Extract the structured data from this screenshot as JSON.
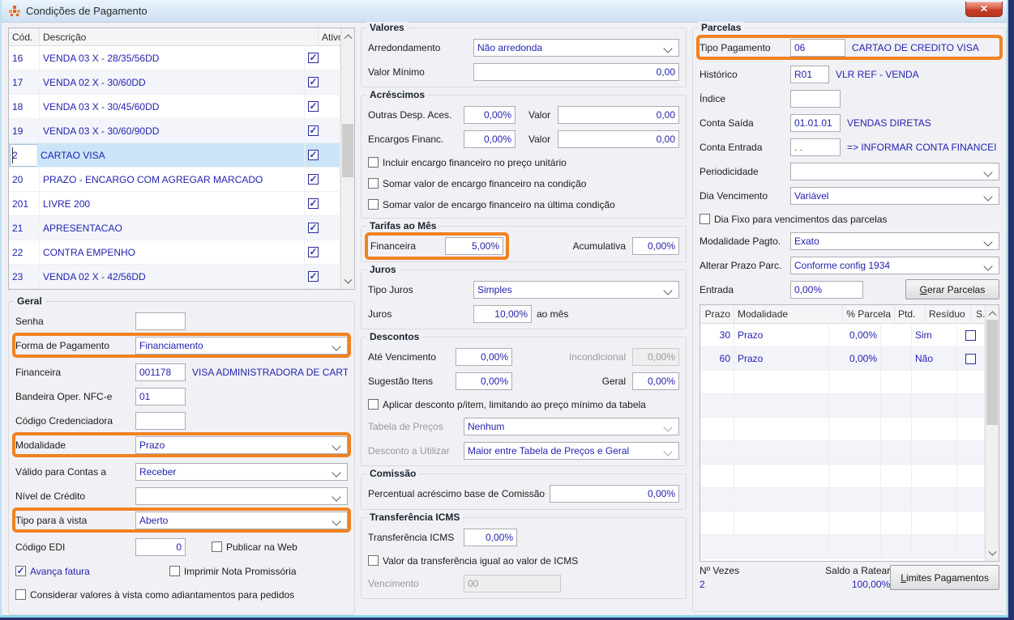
{
  "window": {
    "title": "Condições de Pagamento",
    "close_glyph": "✕"
  },
  "conditions_table": {
    "columns": {
      "code": "Cód.",
      "desc": "Descrição",
      "active": "Ativo"
    },
    "rows": [
      {
        "code": "16",
        "desc": "VENDA 03 X - 28/35/56DD",
        "active": true,
        "selected": false,
        "alt": false
      },
      {
        "code": "17",
        "desc": "VENDA 02 X - 30/60DD",
        "active": true,
        "selected": false,
        "alt": true
      },
      {
        "code": "18",
        "desc": "VENDA 03 X - 30/45/60DD",
        "active": true,
        "selected": false,
        "alt": false
      },
      {
        "code": "19",
        "desc": "VENDA 03 X - 30/60/90DD",
        "active": true,
        "selected": false,
        "alt": true
      },
      {
        "code": "2",
        "desc": "CARTAO VISA",
        "active": true,
        "selected": true,
        "alt": false
      },
      {
        "code": "20",
        "desc": "PRAZO - ENCARGO COM AGREGAR MARCADO",
        "active": true,
        "selected": false,
        "alt": false
      },
      {
        "code": "201",
        "desc": "LIVRE 200",
        "active": true,
        "selected": false,
        "alt": false
      },
      {
        "code": "21",
        "desc": "APRESENTACAO",
        "active": true,
        "selected": false,
        "alt": true
      },
      {
        "code": "22",
        "desc": "CONTRA EMPENHO",
        "active": true,
        "selected": false,
        "alt": false
      },
      {
        "code": "23",
        "desc": "VENDA 02 X - 42/56DD",
        "active": true,
        "selected": false,
        "alt": true
      }
    ]
  },
  "geral": {
    "title": "Geral",
    "senha_label": "Senha",
    "forma_pagamento_label": "Forma de Pagamento",
    "forma_pagamento_value": "Financiamento",
    "financeira_label": "Financeira",
    "financeira_code": "001178",
    "financeira_desc": "VISA ADMINISTRADORA DE CARTC",
    "bandeira_label": "Bandeira Oper. NFC-e",
    "bandeira_value": "01",
    "credenciadora_label": "Código Credenciadora",
    "modalidade_label": "Modalidade",
    "modalidade_value": "Prazo",
    "valido_label": "Válido para Contas a",
    "valido_value": "Receber",
    "nivel_label": "Nível de Crédito",
    "nivel_value": "",
    "tipo_vista_label": "Tipo para à vista",
    "tipo_vista_value": "Aberto",
    "codigo_edi_label": "Código EDI",
    "codigo_edi_value": "0",
    "publicar_web_label": "Publicar na Web",
    "avanca_fatura_label": "Avança fatura",
    "imprimir_label": "Imprimir Nota Promissória",
    "considerar_label": "Considerar valores à vista como adiantamentos para pedidos"
  },
  "valores": {
    "title": "Valores",
    "arredondamento_label": "Arredondamento",
    "arredondamento_value": "Não arredonda",
    "valor_minimo_label": "Valor Mínimo",
    "valor_minimo_value": "0,00"
  },
  "acrescimos": {
    "title": "Acréscimos",
    "outras_label": "Outras Desp. Aces.",
    "outras_pct": "0,00%",
    "valor_label_1": "Valor",
    "outras_valor": "0,00",
    "encargos_label": "Encargos Financ.",
    "encargos_pct": "0,00%",
    "valor_label_2": "Valor",
    "encargos_valor": "0,00",
    "chk_incluir": "Incluir encargo financeiro no preço unitário",
    "chk_somar_condicao": "Somar valor de encargo financeiro na condição",
    "chk_somar_ultima": "Somar valor de encargo financeiro na última condição"
  },
  "tarifas": {
    "title": "Tarifas ao Mês",
    "financeira_label": "Financeira",
    "financeira_pct": "5,00%",
    "acumulativa_label": "Acumulativa",
    "acumulativa_pct": "0,00%"
  },
  "juros": {
    "title": "Juros",
    "tipo_label": "Tipo Juros",
    "tipo_value": "Simples",
    "juros_label": "Juros",
    "juros_pct": "10,00%",
    "sufixo": "ao mês"
  },
  "descontos": {
    "title": "Descontos",
    "ate_label": "Até Vencimento",
    "ate_pct": "0,00%",
    "incondicional_label": "Incondicional",
    "incondicional_pct": "0,00%",
    "sugestao_label": "Sugestão Itens",
    "sugestao_pct": "0,00%",
    "geral_label": "Geral",
    "geral_pct": "0,00%",
    "chk_aplicar": "Aplicar desconto p/item, limitando ao preço mínimo da tabela",
    "tabela_label": "Tabela de Preços",
    "tabela_value": "Nenhum",
    "desconto_label": "Desconto a Utilizar",
    "desconto_value": "Maior entre Tabela de Preços e Geral"
  },
  "comissao": {
    "title": "Comissão",
    "label": "Percentual acréscimo base de Comissão",
    "pct": "0,00%"
  },
  "transferencia": {
    "title": "Transferência ICMS",
    "label": "Transferência ICMS",
    "pct": "0,00%",
    "chk_valor": "Valor da transferência igual ao valor de ICMS",
    "vencimento_label": "Vencimento",
    "vencimento_value": "00"
  },
  "parcelas": {
    "title": "Parcelas",
    "tipo_pagamento_label": "Tipo Pagamento",
    "tipo_pagamento_code": "06",
    "tipo_pagamento_desc": "CARTAO DE CREDITO VISA",
    "historico_label": "Histórico",
    "historico_code": "R01",
    "historico_desc": "VLR REF - VENDA",
    "indice_label": "Índice",
    "indice_value": "",
    "conta_saida_label": "Conta Saída",
    "conta_saida_code": "01.01.01",
    "conta_saida_desc": "VENDAS DIRETAS",
    "conta_entrada_label": "Conta Entrada",
    "conta_entrada_code": ". .",
    "conta_entrada_desc": "=> INFORMAR CONTA FINANCEI",
    "periodicidade_label": "Periodicidade",
    "periodicidade_value": "",
    "dia_venc_label": "Dia Vencimento",
    "dia_venc_value": "Variável",
    "chk_dia_fixo": "Dia Fixo para vencimentos das parcelas",
    "modalidade_label": "Modalidade Pagto.",
    "modalidade_value": "Exato",
    "alterar_label": "Alterar Prazo Parc.",
    "alterar_value": "Conforme config 1934",
    "entrada_label": "Entrada",
    "entrada_pct": "0,00%",
    "gerar_button": "Gerar Parcelas",
    "table": {
      "columns": {
        "prazo": "Prazo",
        "modalidade": "Modalidade",
        "pct": "% Parcela",
        "ptd": "Ptd.",
        "residuo": "Resíduo",
        "st": "S.T."
      },
      "rows": [
        {
          "prazo": "30",
          "modalidade": "Prazo",
          "pct": "0,00%",
          "ptd": "",
          "residuo": "Sim",
          "st": false
        },
        {
          "prazo": "60",
          "modalidade": "Prazo",
          "pct": "0,00%",
          "ptd": "",
          "residuo": "Não",
          "st": false
        }
      ],
      "empty_rows": 8
    },
    "n_vezes_label": "Nº Vezes",
    "n_vezes_value": "2",
    "saldo_label": "Saldo a Ratear",
    "saldo_value": "100,00%",
    "limites_button": "Limites Pagamentos"
  },
  "colors": {
    "highlight": "#F08221",
    "selection": "#CBE4F8",
    "value_text": "#2323B0",
    "close_red": "#C73B24"
  }
}
